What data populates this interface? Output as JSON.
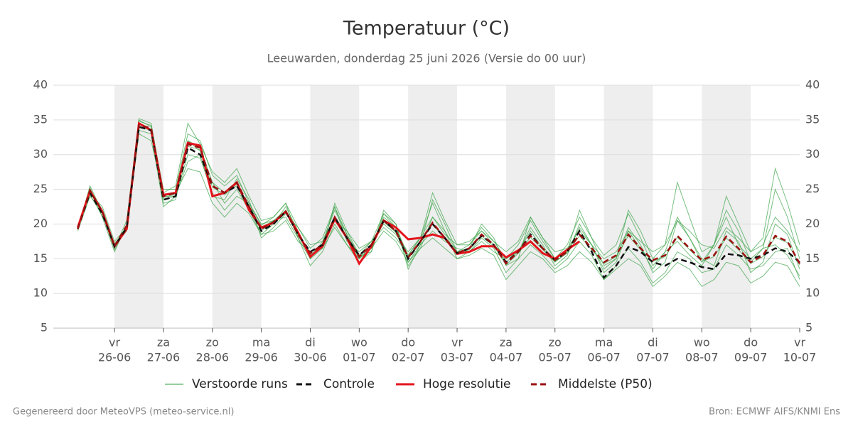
{
  "chart_data": {
    "type": "line",
    "title": "Temperatuur (°C)",
    "subtitle": "Leeuwarden, donderdag 25 juni 2026 (Versie do 00 uur)",
    "footer_left": "Gegenereerd door MeteoVPS (meteo-service.nl)",
    "footer_right": "Bron: ECMWF AIFS/KNMI Ens",
    "grid": true,
    "alternate_day_shading": true,
    "xlim": [
      -12,
      354
    ],
    "ylim": [
      5,
      40
    ],
    "yticks": [
      5,
      10,
      15,
      20,
      25,
      30,
      35,
      40
    ],
    "xticks": [
      {
        "value": 18,
        "label": "vr",
        "date": "26-06"
      },
      {
        "value": 42,
        "label": "za",
        "date": "27-06"
      },
      {
        "value": 66,
        "label": "zo",
        "date": "28-06"
      },
      {
        "value": 90,
        "label": "ma",
        "date": "29-06"
      },
      {
        "value": 114,
        "label": "di",
        "date": "30-06"
      },
      {
        "value": 138,
        "label": "wo",
        "date": "01-07"
      },
      {
        "value": 162,
        "label": "do",
        "date": "02-07"
      },
      {
        "value": 186,
        "label": "vr",
        "date": "03-07"
      },
      {
        "value": 210,
        "label": "za",
        "date": "04-07"
      },
      {
        "value": 234,
        "label": "zo",
        "date": "05-07"
      },
      {
        "value": 258,
        "label": "ma",
        "date": "06-07"
      },
      {
        "value": 282,
        "label": "di",
        "date": "07-07"
      },
      {
        "value": 306,
        "label": "wo",
        "date": "08-07"
      },
      {
        "value": 330,
        "label": "do",
        "date": "09-07"
      },
      {
        "value": 354,
        "label": "vr",
        "date": "10-07"
      }
    ],
    "x": [
      0,
      6,
      12,
      18,
      24,
      30,
      36,
      42,
      48,
      54,
      60,
      66,
      72,
      78,
      84,
      90,
      96,
      102,
      108,
      114,
      120,
      126,
      132,
      138,
      144,
      150,
      156,
      162,
      168,
      174,
      180,
      186,
      192,
      198,
      204,
      210,
      216,
      222,
      228,
      234,
      240,
      246,
      252,
      258,
      264,
      270,
      276,
      282,
      288,
      294,
      300,
      306,
      312,
      318,
      324,
      330,
      336,
      342,
      348,
      354
    ],
    "series": [
      {
        "name": "Verstoorde runs",
        "color": "#2e9e3c",
        "members": [
          [
            19.5,
            25.2,
            21.5,
            16.3,
            19.5,
            34.8,
            34.2,
            23,
            23.5,
            32,
            30.5,
            26,
            23,
            25,
            22,
            18.5,
            20,
            22.5,
            19,
            15,
            17.5,
            22,
            18.5,
            15,
            16.5,
            21,
            19.5,
            14,
            16.5,
            21,
            19,
            16,
            17,
            19.5,
            17.5,
            15,
            16,
            19.5,
            17,
            14,
            15.5,
            20,
            17,
            13.5,
            15,
            19.5,
            17,
            13,
            14.5,
            20.5,
            18,
            15,
            14,
            19,
            17.5,
            13,
            14.5,
            20,
            18.5,
            13.5
          ],
          [
            19,
            24,
            22,
            17,
            19,
            33.5,
            33,
            22.5,
            24,
            30,
            29.5,
            24.5,
            22,
            24,
            23,
            19.8,
            21,
            23,
            19.5,
            16.5,
            18,
            22.5,
            17.5,
            16,
            17.5,
            19.5,
            18,
            15.5,
            18,
            23,
            19,
            15,
            16,
            17.5,
            16,
            15,
            17,
            20.5,
            17.5,
            15,
            17,
            21,
            18,
            15.5,
            17,
            21.5,
            18,
            14,
            16,
            17.5,
            15.5,
            14,
            17,
            21,
            17,
            15,
            16.5,
            17,
            15.5,
            12.5
          ],
          [
            19.3,
            25,
            21,
            16,
            20,
            35,
            34,
            25,
            25,
            33,
            32,
            27,
            25.5,
            27,
            23,
            20,
            20.5,
            21,
            18,
            14,
            16,
            20,
            17,
            14.5,
            16,
            21.5,
            20,
            13.5,
            17,
            19,
            17.5,
            16.5,
            16,
            18,
            16.5,
            13,
            15,
            17,
            15.5,
            13.5,
            15,
            17.5,
            15.5,
            12,
            14,
            16.5,
            14.5,
            11.5,
            13,
            16,
            15,
            13,
            13.5,
            17,
            15.5,
            13.5,
            14,
            16,
            16.5,
            12
          ],
          [
            19.6,
            24.5,
            22.5,
            17.5,
            19.5,
            34,
            33.5,
            23.5,
            24,
            29,
            30,
            24,
            23.5,
            26.5,
            23.5,
            18,
            19.5,
            21.5,
            19.5,
            17,
            17.5,
            20.5,
            19,
            16.5,
            17.5,
            20,
            18.5,
            16,
            18,
            21,
            18.5,
            17,
            17.5,
            19,
            17.5,
            16,
            17.5,
            21,
            18,
            16,
            16.5,
            19,
            17,
            15,
            16,
            19,
            17.5,
            16,
            17,
            20.5,
            19,
            17,
            16.5,
            19.5,
            18,
            16,
            17,
            21,
            19,
            16
          ],
          [
            19.2,
            25.5,
            21.8,
            16.5,
            20.5,
            35.2,
            34.5,
            24.5,
            25.5,
            34.5,
            31.5,
            27.5,
            26,
            28,
            24,
            20.5,
            21,
            23,
            18,
            15,
            16.5,
            23,
            19,
            15.5,
            16,
            22,
            20,
            14.5,
            17,
            23.5,
            20,
            16,
            16.5,
            20,
            18,
            14,
            15,
            21,
            18,
            15,
            16,
            22,
            18,
            14,
            15,
            22,
            19,
            15,
            17,
            26,
            21,
            16,
            17,
            24,
            20,
            16,
            18,
            28,
            23,
            17
          ],
          [
            19.4,
            24.2,
            21.2,
            17.2,
            19.2,
            33,
            32,
            24,
            24.5,
            28,
            27.5,
            23,
            21,
            23,
            21.5,
            18.5,
            19,
            20.5,
            17.5,
            16,
            16.5,
            19.5,
            17,
            15,
            16.5,
            19,
            17.5,
            14.5,
            16.5,
            18,
            16.5,
            15,
            15.5,
            16.5,
            15.5,
            12,
            14,
            16,
            15,
            13,
            14,
            16,
            14.5,
            12,
            13.5,
            15,
            14,
            11,
            12.5,
            14.5,
            13.5,
            11,
            12,
            14.5,
            14,
            11.5,
            12.5,
            14.5,
            14,
            11
          ],
          [
            19.5,
            24.8,
            22,
            16.8,
            19.8,
            34.5,
            33.5,
            24,
            24,
            32,
            31,
            26,
            24.5,
            25.5,
            22,
            19.5,
            20.5,
            22,
            18.5,
            16,
            17,
            22.5,
            18.5,
            15.5,
            17.5,
            21.5,
            19.5,
            15.5,
            18,
            24.5,
            20.5,
            17,
            17,
            19,
            17,
            14.5,
            16,
            19,
            16.5,
            14.5,
            16,
            19.5,
            17,
            13,
            14.5,
            19,
            16.5,
            13.5,
            16,
            21,
            18,
            14.5,
            17,
            22,
            19,
            14.5,
            16.5,
            25,
            21,
            15
          ],
          [
            19.3,
            24.6,
            21.6,
            16.6,
            19.6,
            34.1,
            33.6,
            23.8,
            24.3,
            31.2,
            30.7,
            25.3,
            24.2,
            25.8,
            22.3,
            19.1,
            20.1,
            21.6,
            18.3,
            15.6,
            16.8,
            20.8,
            17.8,
            15.1,
            16.8,
            20.3,
            18.8,
            15,
            17.3,
            20,
            17.8,
            15.6,
            16.3,
            18.3,
            16.8,
            14.1,
            15.8,
            18.1,
            16.3,
            14.6,
            15.8,
            18.3,
            16.3,
            14.3,
            15.3,
            18.3,
            16.3,
            14.6,
            15.3,
            18.1,
            16.3,
            14.6,
            15.3,
            18,
            16.3,
            14.3,
            15.3,
            18.1,
            17.3,
            14.1
          ]
        ]
      },
      {
        "name": "Controle",
        "color": "#111111",
        "dash": true,
        "values": [
          19.3,
          24.5,
          21.5,
          16.8,
          19.5,
          34,
          33.5,
          23.5,
          24,
          31,
          30,
          25.5,
          24.5,
          25.5,
          22.5,
          19,
          20,
          21.8,
          18.5,
          16,
          17,
          21,
          18,
          15.5,
          17,
          20.5,
          19,
          15,
          17.5,
          20,
          18,
          15.8,
          16.5,
          18.3,
          17,
          14.5,
          16,
          18.5,
          16.5,
          14.8,
          16,
          19,
          16,
          12.3,
          14,
          16.7,
          16,
          14.5,
          14,
          15,
          14.5,
          13.8,
          13.5,
          15.7,
          15.5,
          15,
          15.5,
          16.5,
          16,
          14.5
        ]
      },
      {
        "name": "Hoge resolutie",
        "color": "#e3151c",
        "dash": false,
        "values": [
          19.5,
          24.8,
          21.8,
          16.8,
          19.3,
          34.5,
          33.5,
          24.2,
          24.5,
          31.7,
          31.3,
          24,
          24.5,
          26,
          22,
          19.5,
          20.2,
          21.8,
          18.8,
          15.3,
          16.8,
          20.7,
          18,
          14.3,
          16.8,
          20.5,
          19.5,
          17.8,
          18,
          18.5,
          18,
          15.7,
          16,
          16.8,
          16.8,
          15.2,
          16.2,
          17.5,
          15.8,
          15,
          16.3,
          17.5,
          null,
          null,
          null,
          null,
          null,
          null,
          null,
          null,
          null,
          null,
          null,
          null,
          null,
          null,
          null,
          null,
          null,
          null
        ]
      },
      {
        "name": "Middelste (P50)",
        "color": "#9c1010",
        "dash": true,
        "values": [
          19.3,
          24.8,
          21.8,
          16.8,
          19.8,
          34.3,
          33.8,
          24,
          24.5,
          31.5,
          31,
          25.5,
          24.5,
          26,
          22.5,
          19.3,
          20.3,
          21.8,
          18.5,
          15.8,
          17,
          21,
          18,
          15.3,
          17,
          20.5,
          19,
          15.2,
          17.5,
          20.2,
          18,
          15.8,
          16.5,
          18.5,
          17,
          14.3,
          16,
          18.3,
          16.5,
          14.8,
          16,
          18.5,
          16.5,
          14.5,
          15.5,
          18.5,
          16.5,
          14.8,
          15.5,
          18.3,
          16.5,
          14.8,
          15.5,
          18.2,
          16.5,
          14.5,
          15.5,
          18.3,
          17.5,
          14.3
        ]
      }
    ]
  }
}
